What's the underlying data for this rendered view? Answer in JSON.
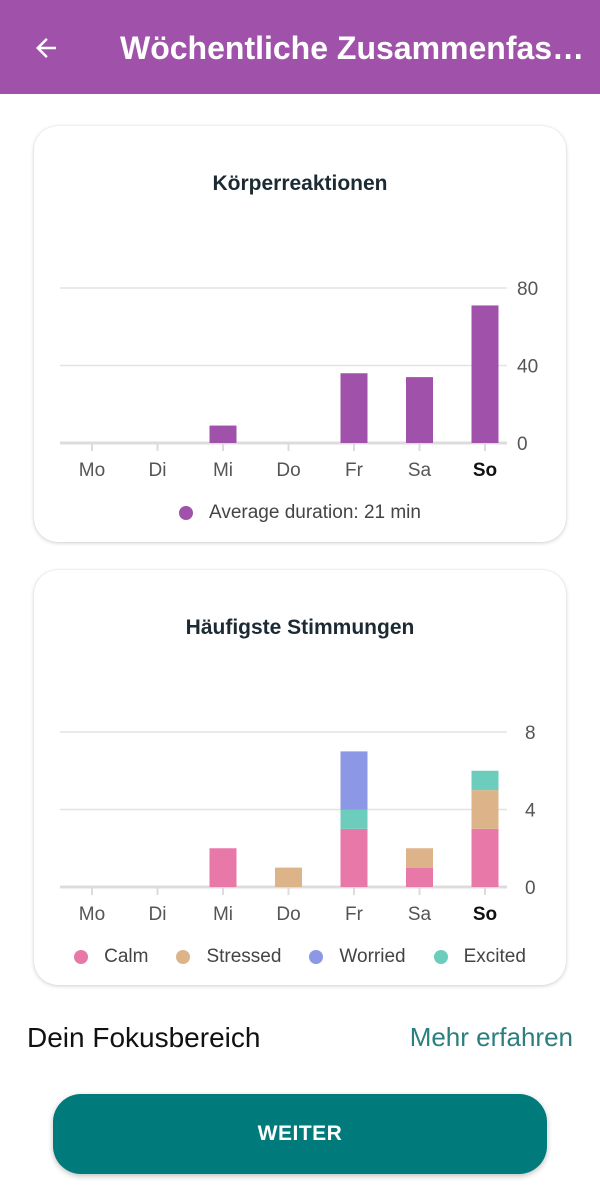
{
  "appbar": {
    "title": "Wöchentliche Zusammenfass…",
    "back_icon": "arrow-left-icon",
    "color": "#a052aa"
  },
  "card1": {
    "title": "Körperreaktionen",
    "legend": [
      {
        "label": "Average duration: 21 min",
        "color": "#a052aa"
      }
    ]
  },
  "card2": {
    "title": "Häufigste Stimmungen",
    "legend": [
      {
        "label": "Calm",
        "color": "#e878a8"
      },
      {
        "label": "Stressed",
        "color": "#ddb48a"
      },
      {
        "label": "Worried",
        "color": "#8c98e6"
      },
      {
        "label": "Excited",
        "color": "#6ccdbd"
      }
    ]
  },
  "chart_data": [
    {
      "type": "bar",
      "title": "Körperreaktionen",
      "categories": [
        "Mo",
        "Di",
        "Mi",
        "Do",
        "Fr",
        "Sa",
        "So"
      ],
      "highlight_category": "So",
      "series": [
        {
          "name": "Average duration: 21 min",
          "values": [
            0,
            0,
            9,
            0,
            36,
            34,
            71
          ],
          "color": "#a052aa"
        }
      ],
      "yticks": [
        0,
        40,
        80
      ],
      "ylim": [
        0,
        80
      ],
      "grid": true,
      "axis_side": "right",
      "legend_position": "bottom"
    },
    {
      "type": "bar",
      "stacked": true,
      "title": "Häufigste Stimmungen",
      "categories": [
        "Mo",
        "Di",
        "Mi",
        "Do",
        "Fr",
        "Sa",
        "So"
      ],
      "highlight_category": "So",
      "series": [
        {
          "name": "Calm",
          "values": [
            0,
            0,
            2,
            0,
            3,
            1,
            3
          ],
          "color": "#e878a8"
        },
        {
          "name": "Stressed",
          "values": [
            0,
            0,
            0,
            1,
            0,
            1,
            2
          ],
          "color": "#ddb48a"
        },
        {
          "name": "Excited",
          "values": [
            0,
            0,
            0,
            0,
            1,
            0,
            1
          ],
          "color": "#6ccdbd"
        },
        {
          "name": "Worried",
          "values": [
            0,
            0,
            0,
            0,
            3,
            0,
            0
          ],
          "color": "#8c98e6"
        }
      ],
      "yticks": [
        0,
        4,
        8
      ],
      "ylim": [
        0,
        8
      ],
      "grid": true,
      "axis_side": "right",
      "legend_position": "bottom"
    }
  ],
  "focus": {
    "title": "Dein Fokusbereich",
    "link": "Mehr erfahren"
  },
  "actions": {
    "continue_label": "WEITER"
  }
}
